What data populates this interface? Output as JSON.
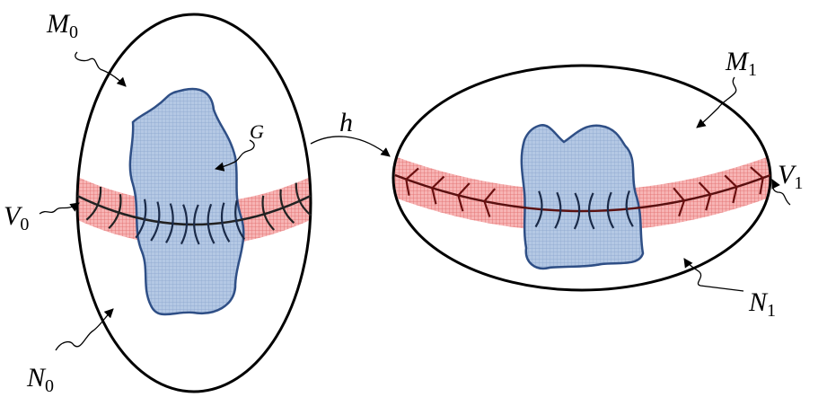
{
  "labels": {
    "M0": {
      "base": "M",
      "sub": "0"
    },
    "N0": {
      "base": "N",
      "sub": "0"
    },
    "V0": {
      "base": "V",
      "sub": "0"
    },
    "G": {
      "base": "G"
    },
    "h": {
      "base": "h"
    },
    "M1": {
      "base": "M",
      "sub": "1"
    },
    "N1": {
      "base": "N",
      "sub": "1"
    },
    "V1": {
      "base": "V",
      "sub": "1"
    }
  }
}
